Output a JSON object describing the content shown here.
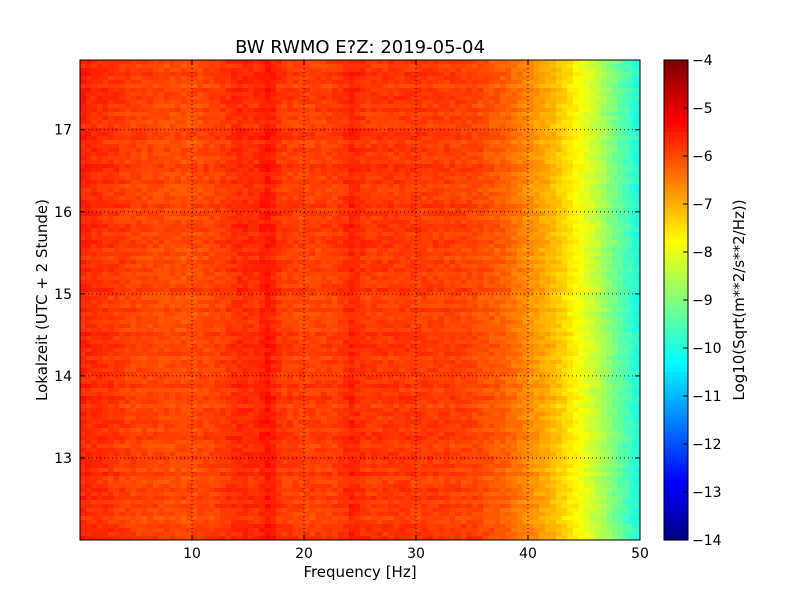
{
  "chart_data": {
    "type": "heatmap",
    "title": "BW RWMO E?Z: 2019-05-04",
    "xlabel": "Frequency [Hz]",
    "ylabel": "Lokalzeit (UTC + 2 Stunde)",
    "colorbar_label": "Log10(Sqrt(m**2/s**2/Hz))",
    "colormap": "jet",
    "xlim": [
      0,
      50
    ],
    "ylim": [
      17.85,
      12.0
    ],
    "x_ticks": [
      10,
      20,
      30,
      40,
      50
    ],
    "y_ticks": [
      13,
      14,
      15,
      16,
      17
    ],
    "colorbar_range": [
      -14,
      -4
    ],
    "colorbar_ticks": [
      -4,
      -5,
      -6,
      -7,
      -8,
      -9,
      -10,
      -11,
      -12,
      -13,
      -14
    ],
    "grid": true,
    "grid_style": "dotted",
    "spectral_profile": {
      "frequency_hz": [
        0,
        5,
        10,
        15,
        20,
        25,
        30,
        35,
        38,
        40,
        42,
        44,
        46,
        48,
        50
      ],
      "log10_amplitude": [
        -5.6,
        -5.9,
        -6.0,
        -5.7,
        -5.9,
        -5.8,
        -5.8,
        -5.9,
        -6.2,
        -6.6,
        -7.0,
        -7.6,
        -8.3,
        -9.2,
        -10.0
      ]
    },
    "vertical_bands": [
      {
        "frequency_hz": 16.8,
        "strength": 0.7
      },
      {
        "frequency_hz": 24.3,
        "strength": 0.5
      },
      {
        "frequency_hz": 14.1,
        "strength": 0.2
      }
    ],
    "horizontal_events": [
      {
        "time": 12.2,
        "strength": 0.9
      },
      {
        "time": 13.25,
        "strength": 1.0
      },
      {
        "time": 14.6,
        "strength": 0.4
      },
      {
        "time": 14.88,
        "strength": 1.0
      },
      {
        "time": 15.05,
        "strength": 0.8
      },
      {
        "time": 16.38,
        "strength": 0.6
      },
      {
        "time": 16.7,
        "strength": 1.0
      },
      {
        "time": 16.88,
        "strength": 0.4
      },
      {
        "time": 17.35,
        "strength": 0.4
      },
      {
        "time": 17.7,
        "strength": 0.3
      }
    ]
  }
}
